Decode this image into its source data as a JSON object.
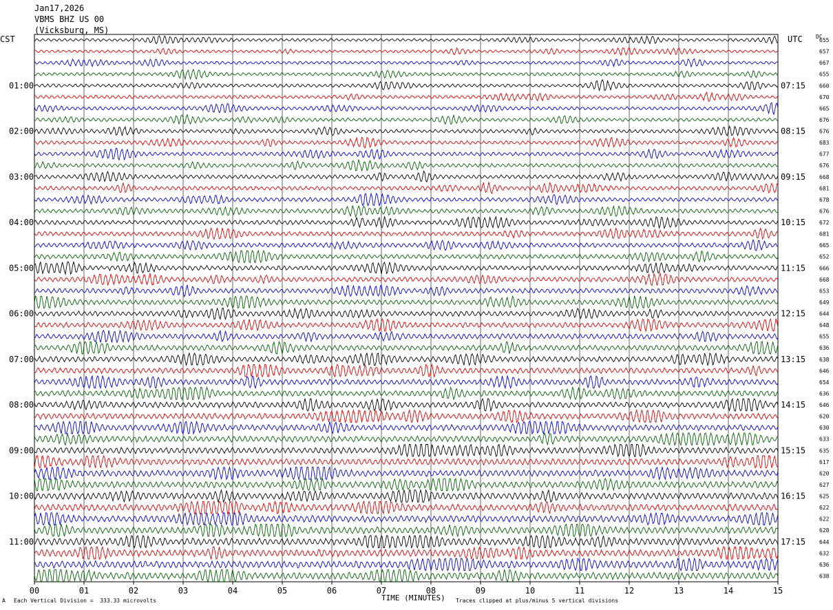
{
  "header": {
    "date": "Jan17,2026",
    "station": "VBMS BHZ US 00",
    "location": "(Vicksburg, MS)"
  },
  "left_timezone": "CST",
  "right_timezone": "UTC",
  "dc_label": "DC",
  "footer": {
    "scale_note": "Each Vertical Division =  333.33 microvolts",
    "clip_note": "Traces clipped at plus/minus 5 vertical divisions",
    "corner_mark": "A"
  },
  "chart_data": {
    "type": "line",
    "xlabel": "TIME (MINUTES)",
    "xlim": [
      0,
      15
    ],
    "x_ticks": [
      "00",
      "01",
      "02",
      "03",
      "04",
      "05",
      "06",
      "07",
      "08",
      "09",
      "10",
      "11",
      "12",
      "13",
      "14",
      "15"
    ],
    "left_time_labels": [
      "01:00",
      "02:00",
      "03:00",
      "04:00",
      "05:00",
      "06:00",
      "07:00",
      "08:00",
      "09:00",
      "10:00",
      "11:00"
    ],
    "right_time_labels": [
      "07:15",
      "08:15",
      "09:15",
      "10:15",
      "11:15",
      "12:15",
      "13:15",
      "14:15",
      "15:15",
      "16:15",
      "17:15"
    ],
    "trace_colors": [
      "#000000",
      "#e00000",
      "#0000e0",
      "#006000"
    ],
    "trace_count": 48,
    "grid": true,
    "dc_offsets": [
      "655",
      "657",
      "667",
      "655",
      "660",
      "670",
      "665",
      "676",
      "676",
      "683",
      "677",
      "676",
      "668",
      "681",
      "678",
      "676",
      "672",
      "681",
      "665",
      "652",
      "666",
      "668",
      "653",
      "649",
      "644",
      "648",
      "655",
      "636",
      "638",
      "646",
      "654",
      "636",
      "646",
      "620",
      "630",
      "633",
      "635",
      "617",
      "620",
      "627",
      "625",
      "622",
      "622",
      "628",
      "644",
      "632",
      "636",
      "638"
    ]
  }
}
